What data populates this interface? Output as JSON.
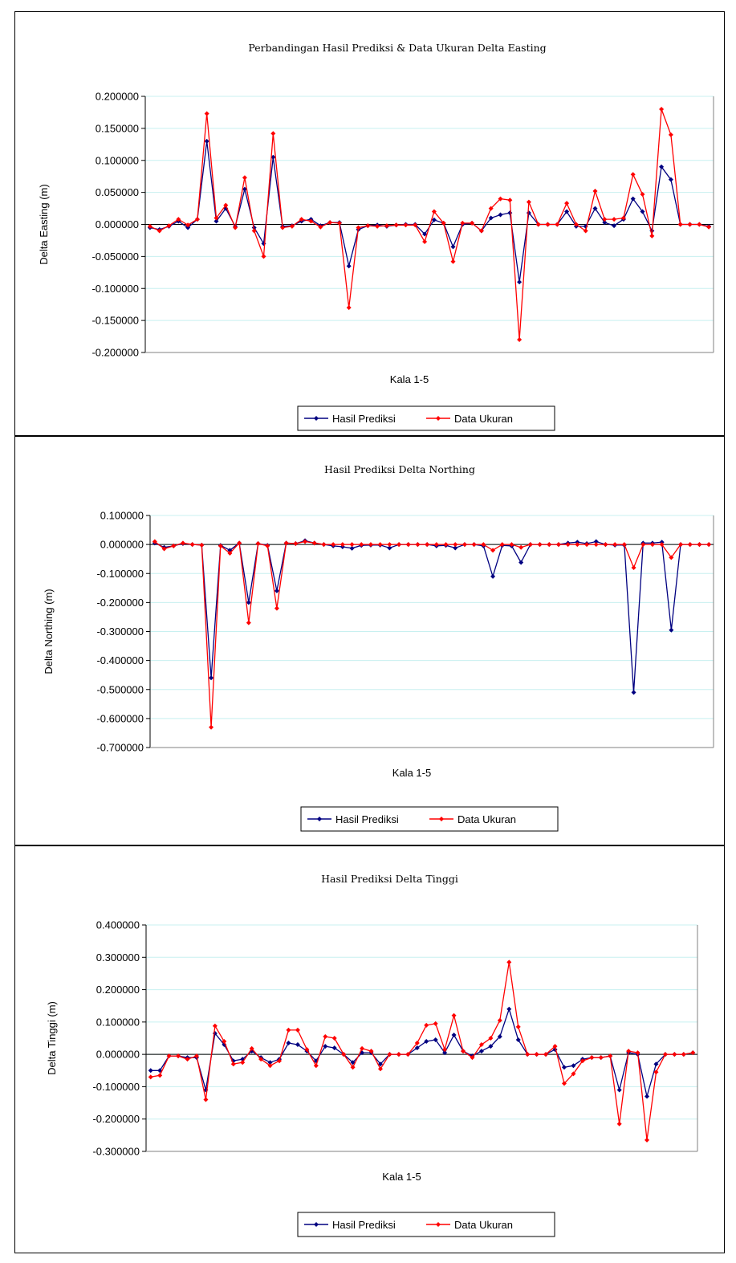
{
  "colors": {
    "prediksi": "#000080",
    "ukuran": "#ff0000",
    "grid": "#c8f0f0",
    "plot_border": "#808080"
  },
  "chart_data": [
    {
      "type": "line",
      "title": "Perbandingan Hasil Prediksi & Data Ukuran Delta Easting",
      "xlabel": "Kala 1-5",
      "ylabel": "Delta Easting (m)",
      "ylim": [
        -0.2,
        0.2
      ],
      "yticks": [
        0.2,
        0.15,
        0.1,
        0.05,
        0.0,
        -0.05,
        -0.1,
        -0.15,
        -0.2
      ],
      "ytick_labels": [
        "0.200000",
        "0.150000",
        "0.100000",
        "0.050000",
        "0.000000",
        "-0.050000",
        "-0.100000",
        "-0.150000",
        "-0.200000"
      ],
      "grid": true,
      "legend": "bottom",
      "series": [
        {
          "name": "Hasil Prediksi",
          "values": [
            -0.005,
            -0.008,
            -0.003,
            0.005,
            -0.005,
            0.008,
            0.13,
            0.005,
            0.025,
            -0.003,
            0.055,
            -0.005,
            -0.03,
            0.105,
            -0.003,
            -0.002,
            0.005,
            0.008,
            -0.002,
            0.003,
            0.003,
            -0.065,
            -0.008,
            -0.002,
            -0.001,
            -0.003,
            -0.001,
            0.0,
            0.0,
            -0.015,
            0.007,
            0.002,
            -0.035,
            0.0,
            0.002,
            -0.01,
            0.01,
            0.015,
            0.018,
            -0.09,
            0.018,
            0.0,
            0.0,
            0.0,
            0.02,
            -0.003,
            -0.003,
            0.025,
            0.003,
            -0.002,
            0.008,
            0.04,
            0.02,
            -0.01,
            0.09,
            0.07,
            0.0,
            0.0,
            0.0,
            -0.003
          ]
        },
        {
          "name": "Data Ukuran",
          "values": [
            -0.003,
            -0.01,
            -0.002,
            0.008,
            -0.001,
            0.008,
            0.173,
            0.01,
            0.03,
            -0.005,
            0.073,
            -0.01,
            -0.05,
            0.142,
            -0.005,
            -0.003,
            0.008,
            0.005,
            -0.004,
            0.003,
            0.002,
            -0.13,
            -0.005,
            -0.002,
            -0.003,
            -0.002,
            -0.001,
            -0.001,
            -0.001,
            -0.027,
            0.02,
            0.002,
            -0.058,
            0.002,
            0.002,
            -0.01,
            0.025,
            0.04,
            0.038,
            -0.18,
            0.035,
            0.0,
            0.0,
            0.0,
            0.033,
            0.0,
            -0.01,
            0.052,
            0.008,
            0.008,
            0.01,
            0.078,
            0.047,
            -0.018,
            0.18,
            0.14,
            0.0,
            0.0,
            0.0,
            -0.004
          ]
        }
      ]
    },
    {
      "type": "line",
      "title": "Hasil Prediksi Delta Northing",
      "xlabel": "Kala 1-5",
      "ylabel": "Delta Northing (m)",
      "ylim": [
        -0.7,
        0.1
      ],
      "yticks": [
        0.1,
        0.0,
        -0.1,
        -0.2,
        -0.3,
        -0.4,
        -0.5,
        -0.6,
        -0.7
      ],
      "ytick_labels": [
        "0.100000",
        "0.000000",
        "-0.100000",
        "-0.200000",
        "-0.300000",
        "-0.400000",
        "-0.500000",
        "-0.600000",
        "-0.700000"
      ],
      "grid": true,
      "legend": "bottom",
      "series": [
        {
          "name": "Hasil Prediksi",
          "values": [
            0.005,
            -0.01,
            -0.005,
            0.003,
            0.0,
            -0.002,
            -0.46,
            -0.003,
            -0.02,
            0.005,
            -0.2,
            0.003,
            -0.003,
            -0.16,
            0.005,
            0.003,
            0.013,
            0.005,
            0.0,
            -0.005,
            -0.008,
            -0.013,
            -0.003,
            -0.002,
            -0.002,
            -0.012,
            0.0,
            0.0,
            0.0,
            0.0,
            -0.005,
            -0.003,
            -0.012,
            0.0,
            0.0,
            -0.005,
            -0.11,
            -0.003,
            -0.005,
            -0.062,
            0.0,
            0.0,
            0.0,
            0.0,
            0.005,
            0.008,
            0.003,
            0.01,
            0.0,
            -0.002,
            -0.002,
            -0.51,
            0.005,
            0.005,
            0.008,
            -0.295,
            0.0,
            0.0,
            0.0,
            0.0
          ]
        },
        {
          "name": "Data Ukuran",
          "values": [
            0.01,
            -0.015,
            -0.005,
            0.005,
            0.0,
            -0.002,
            -0.63,
            -0.005,
            -0.03,
            0.005,
            -0.27,
            0.003,
            -0.005,
            -0.22,
            0.005,
            0.003,
            0.01,
            0.005,
            0.0,
            0.0,
            0.0,
            0.0,
            0.0,
            0.0,
            0.0,
            0.0,
            0.0,
            0.0,
            0.0,
            0.0,
            0.0,
            0.0,
            0.0,
            0.0,
            0.0,
            0.0,
            -0.02,
            0.0,
            0.0,
            -0.01,
            0.0,
            0.0,
            0.0,
            0.0,
            0.0,
            0.0,
            0.0,
            0.0,
            0.0,
            0.0,
            0.0,
            -0.08,
            0.0,
            0.0,
            0.0,
            -0.045,
            0.0,
            0.0,
            0.0,
            0.0
          ]
        }
      ]
    },
    {
      "type": "line",
      "title": "Hasil Prediksi Delta Tinggi",
      "xlabel": "Kala 1-5",
      "ylabel": "Delta Tinggi (m)",
      "ylim": [
        -0.3,
        0.4
      ],
      "yticks": [
        0.4,
        0.3,
        0.2,
        0.1,
        0.0,
        -0.1,
        -0.2,
        -0.3
      ],
      "ytick_labels": [
        "0.400000",
        "0.300000",
        "0.200000",
        "0.100000",
        "0.000000",
        "-0.100000",
        "-0.200000",
        "-0.300000"
      ],
      "grid": true,
      "legend": "bottom",
      "series": [
        {
          "name": "Hasil Prediksi",
          "values": [
            -0.05,
            -0.05,
            -0.005,
            -0.005,
            -0.01,
            -0.01,
            -0.11,
            0.065,
            0.03,
            -0.02,
            -0.015,
            0.01,
            -0.01,
            -0.025,
            -0.015,
            0.035,
            0.03,
            0.01,
            -0.02,
            0.025,
            0.02,
            0.0,
            -0.025,
            0.005,
            0.005,
            -0.03,
            0.0,
            0.0,
            0.0,
            0.02,
            0.04,
            0.045,
            0.005,
            0.06,
            0.01,
            -0.005,
            0.01,
            0.025,
            0.055,
            0.14,
            0.045,
            0.0,
            0.0,
            0.0,
            0.015,
            -0.04,
            -0.035,
            -0.015,
            -0.01,
            -0.01,
            -0.005,
            -0.11,
            0.005,
            0.0,
            -0.13,
            -0.03,
            0.0,
            0.0,
            0.0,
            0.005
          ]
        },
        {
          "name": "Data Ukuran",
          "values": [
            -0.07,
            -0.065,
            -0.005,
            -0.005,
            -0.015,
            -0.005,
            -0.14,
            0.088,
            0.04,
            -0.03,
            -0.025,
            0.018,
            -0.015,
            -0.035,
            -0.02,
            0.075,
            0.075,
            0.015,
            -0.035,
            0.055,
            0.05,
            0.0,
            -0.04,
            0.018,
            0.01,
            -0.045,
            0.0,
            0.0,
            0.0,
            0.035,
            0.09,
            0.095,
            0.015,
            0.12,
            0.01,
            -0.01,
            0.03,
            0.05,
            0.105,
            0.285,
            0.085,
            0.0,
            0.0,
            0.0,
            0.025,
            -0.09,
            -0.06,
            -0.02,
            -0.01,
            -0.01,
            -0.005,
            -0.215,
            0.01,
            0.005,
            -0.265,
            -0.055,
            0.0,
            0.0,
            0.0,
            0.005
          ]
        }
      ]
    }
  ]
}
